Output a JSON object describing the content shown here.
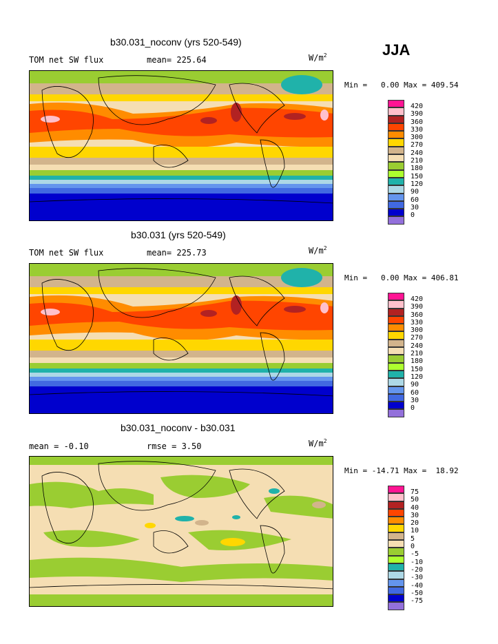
{
  "season": "JJA",
  "units": "W/m",
  "units_exp": "2",
  "panels": [
    {
      "title": "b30.031_noconv (yrs 520-549)",
      "left_label": "TOM net SW flux",
      "stat1": "mean= 225.64",
      "stat2": "",
      "minmax": "Min =   0.00 Max = 409.54"
    },
    {
      "title": "b30.031 (yrs 520-549)",
      "left_label": "TOM net SW flux",
      "stat1": "mean= 225.73",
      "stat2": "",
      "minmax": "Min =   0.00 Max = 406.81"
    },
    {
      "title": "b30.031_noconv - b30.031",
      "left_label": "mean =  -0.10",
      "stat1": "rmse =   3.50",
      "stat2": "",
      "minmax": "Min = -14.71 Max =  18.92"
    }
  ],
  "colorbar_abs": {
    "labels": [
      "420",
      "390",
      "360",
      "330",
      "300",
      "270",
      "240",
      "210",
      "180",
      "150",
      "120",
      "90",
      "60",
      "30",
      "0"
    ],
    "colors": [
      "#ff1493",
      "#ffc0cb",
      "#b22222",
      "#ff4500",
      "#ff8c00",
      "#ffd700",
      "#d2b48c",
      "#f5deb3",
      "#9acd32",
      "#adff2f",
      "#20b2aa",
      "#add8e6",
      "#6495ed",
      "#4169e1",
      "#0000cd",
      "#9370db"
    ]
  },
  "colorbar_diff": {
    "labels": [
      "75",
      "50",
      "40",
      "30",
      "20",
      "10",
      "5",
      "0",
      "-5",
      "-10",
      "-20",
      "-30",
      "-40",
      "-50",
      "-75"
    ],
    "colors": [
      "#ff1493",
      "#ffc0cb",
      "#b22222",
      "#ff4500",
      "#ff8c00",
      "#ffd700",
      "#d2b48c",
      "#f5deb3",
      "#9acd32",
      "#adff2f",
      "#20b2aa",
      "#add8e6",
      "#6495ed",
      "#4169e1",
      "#0000cd",
      "#9370db"
    ]
  },
  "chart_data": [
    {
      "type": "heatmap",
      "title": "b30.031_noconv (yrs 520-549)",
      "variable": "TOM net SW flux",
      "mean": 225.64,
      "min": 0.0,
      "max": 409.54,
      "units": "W/m2",
      "levels": [
        0,
        30,
        60,
        90,
        120,
        150,
        180,
        210,
        240,
        270,
        300,
        330,
        360,
        390,
        420
      ]
    },
    {
      "type": "heatmap",
      "title": "b30.031 (yrs 520-549)",
      "variable": "TOM net SW flux",
      "mean": 225.73,
      "min": 0.0,
      "max": 406.81,
      "units": "W/m2",
      "levels": [
        0,
        30,
        60,
        90,
        120,
        150,
        180,
        210,
        240,
        270,
        300,
        330,
        360,
        390,
        420
      ]
    },
    {
      "type": "heatmap",
      "title": "b30.031_noconv - b30.031",
      "mean": -0.1,
      "rmse": 3.5,
      "min": -14.71,
      "max": 18.92,
      "units": "W/m2",
      "levels": [
        -75,
        -50,
        -40,
        -30,
        -20,
        -10,
        -5,
        0,
        5,
        10,
        20,
        30,
        40,
        50,
        75
      ]
    }
  ]
}
